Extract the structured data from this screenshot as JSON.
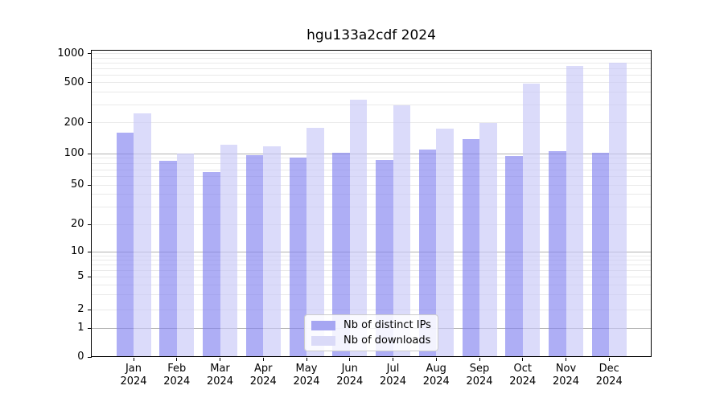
{
  "title": "hgu133a2cdf 2024",
  "chart_data": {
    "type": "bar",
    "title": "hgu133a2cdf 2024",
    "xlabel": "",
    "ylabel": "",
    "categories": [
      "Jan",
      "Feb",
      "Mar",
      "Apr",
      "May",
      "Jun",
      "Jul",
      "Aug",
      "Sep",
      "Oct",
      "Nov",
      "Dec"
    ],
    "category_year_label": "2024",
    "series": [
      {
        "name": "Nb of distinct IPs",
        "legend_color": "#a6a6f2",
        "bar_color": "rgba(130,130,240,0.65)",
        "values": [
          160,
          85,
          67,
          97,
          92,
          101,
          87,
          110,
          138,
          95,
          105,
          102
        ]
      },
      {
        "name": "Nb of downloads",
        "legend_color": "#dadaf8",
        "bar_color": "rgba(200,200,247,0.65)",
        "values": [
          250,
          100,
          121,
          118,
          180,
          338,
          300,
          176,
          200,
          485,
          740,
          805
        ]
      }
    ],
    "yscale": "log-like with 0 baseline",
    "yticks": [
      0,
      1,
      2,
      5,
      10,
      20,
      50,
      100,
      200,
      500,
      1000
    ],
    "ylim": [
      0,
      1100
    ],
    "grid": "horizontal major (1,10,100) + minor log lines",
    "legend_position": "inside bottom-center",
    "major_grid_color": "#b2b2b2",
    "minor_grid_color": "#e9e9e9"
  }
}
